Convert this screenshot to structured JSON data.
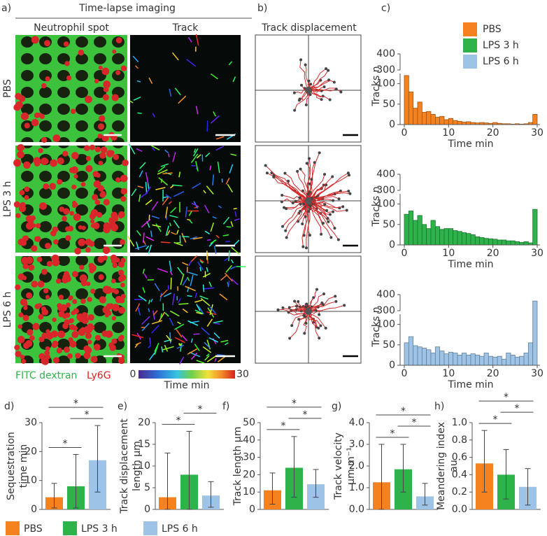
{
  "panels": {
    "a": {
      "letter": "a)",
      "title": "Time-lapse imaging",
      "columns": [
        "Neutrophil spot",
        "Track"
      ],
      "rows": [
        "PBS",
        "LPS 3 h",
        "LPS 6 h"
      ],
      "stain": [
        "FITC dextran",
        "Ly6G"
      ],
      "colorbar": {
        "min": 0,
        "max": 30,
        "label": "Time min"
      }
    },
    "b": {
      "letter": "b)",
      "title": "Track displacement"
    },
    "c": {
      "letter": "c)"
    }
  },
  "legend": [
    {
      "name": "PBS",
      "color": "#f5821f"
    },
    {
      "name": "LPS 3 h",
      "color": "#2db34a"
    },
    {
      "name": "LPS 6 h",
      "color": "#9dc3e6"
    }
  ],
  "chart_data": [
    {
      "type": "histogram",
      "bins": [
        0,
        1,
        2,
        3,
        4,
        5,
        6,
        7,
        8,
        9,
        10,
        11,
        12,
        13,
        14,
        15,
        16,
        17,
        18,
        19,
        20,
        21,
        22,
        23,
        24,
        25,
        26,
        27,
        28,
        29,
        30
      ],
      "values": [
        120,
        80,
        40,
        55,
        30,
        32,
        25,
        18,
        20,
        12,
        15,
        10,
        8,
        6,
        7,
        5,
        4,
        5,
        4,
        3,
        5,
        3,
        2,
        2,
        1,
        2,
        1,
        2,
        5,
        25
      ],
      "color": "#f5821f",
      "xlim": [
        0,
        30
      ],
      "xticks": [
        0,
        10,
        20,
        30
      ],
      "ylim": [
        0,
        400
      ],
      "yticks": [
        0,
        50,
        100,
        300,
        400
      ],
      "ybreak": [
        125,
        300
      ],
      "xlabel": "Time min",
      "ylabel": "Tracks n"
    },
    {
      "type": "histogram",
      "bins": [
        0,
        1,
        2,
        3,
        4,
        5,
        6,
        7,
        8,
        9,
        10,
        11,
        12,
        13,
        14,
        15,
        16,
        17,
        18,
        19,
        20,
        21,
        22,
        23,
        24,
        25,
        26,
        27,
        28,
        29,
        30
      ],
      "values": [
        75,
        83,
        60,
        72,
        50,
        40,
        60,
        45,
        38,
        40,
        40,
        35,
        33,
        30,
        28,
        25,
        20,
        18,
        16,
        15,
        14,
        12,
        12,
        10,
        10,
        8,
        6,
        8,
        5,
        87
      ],
      "color": "#2db34a",
      "xlim": [
        0,
        30
      ],
      "xticks": [
        0,
        10,
        20,
        30
      ],
      "ylim": [
        0,
        400
      ],
      "yticks": [
        0,
        50,
        100,
        300,
        400
      ],
      "ybreak": [
        125,
        300
      ],
      "xlabel": "Time min",
      "ylabel": "Tracks n"
    },
    {
      "type": "histogram",
      "bins": [
        0,
        1,
        2,
        3,
        4,
        5,
        6,
        7,
        8,
        9,
        10,
        11,
        12,
        13,
        14,
        15,
        16,
        17,
        18,
        19,
        20,
        21,
        22,
        23,
        24,
        25,
        26,
        27,
        28,
        29,
        30
      ],
      "values": [
        55,
        70,
        48,
        45,
        42,
        38,
        30,
        45,
        35,
        28,
        32,
        30,
        25,
        30,
        25,
        28,
        25,
        22,
        30,
        22,
        20,
        22,
        15,
        30,
        25,
        20,
        22,
        30,
        55,
        360
      ],
      "color": "#9dc3e6",
      "xlim": [
        0,
        30
      ],
      "xticks": [
        0,
        10,
        20,
        30
      ],
      "ylim": [
        0,
        400
      ],
      "yticks": [
        0,
        50,
        100,
        300,
        400
      ],
      "ybreak": [
        125,
        300
      ],
      "xlabel": "Time min",
      "ylabel": "Tracks n"
    },
    {
      "type": "bar",
      "panel": "d)",
      "ylabel": [
        "Sequestration",
        "time min"
      ],
      "categories": [
        null,
        null,
        null
      ],
      "values": [
        4.2,
        8,
        17
      ],
      "errors_minus": [
        3.7,
        7.5,
        11
      ],
      "errors_plus": [
        4.8,
        11,
        12
      ],
      "colors": [
        "#f5821f",
        "#2db34a",
        "#9dc3e6"
      ],
      "ylim": [
        0,
        30
      ],
      "yticks": [
        0,
        10,
        20,
        30
      ],
      "significance": [
        {
          "pair": [
            0,
            1
          ],
          "label": "*"
        },
        {
          "pair": [
            1,
            2
          ],
          "label": "*"
        },
        {
          "pair": [
            0,
            2
          ],
          "label": "*"
        }
      ]
    },
    {
      "type": "bar",
      "panel": "e)",
      "ylabel": [
        "Track displacement",
        "length µm"
      ],
      "categories": [
        null,
        null,
        null
      ],
      "values": [
        2.8,
        8,
        3.2
      ],
      "errors_minus": [
        2.8,
        8,
        2.7
      ],
      "errors_plus": [
        10.2,
        10,
        3.2
      ],
      "colors": [
        "#f5821f",
        "#2db34a",
        "#9dc3e6"
      ],
      "ylim": [
        0,
        20
      ],
      "yticks": [
        0,
        5,
        10,
        15,
        20
      ],
      "significance": [
        {
          "pair": [
            0,
            1
          ],
          "label": "*"
        },
        {
          "pair": [
            1,
            2
          ],
          "label": "*"
        }
      ]
    },
    {
      "type": "bar",
      "panel": "f)",
      "ylabel": [
        "Track length µm"
      ],
      "categories": [
        null,
        null,
        null
      ],
      "values": [
        11,
        24,
        14.5
      ],
      "errors_minus": [
        8,
        17,
        7.5
      ],
      "errors_plus": [
        10,
        18,
        8.5
      ],
      "colors": [
        "#f5821f",
        "#2db34a",
        "#9dc3e6"
      ],
      "ylim": [
        0,
        50
      ],
      "yticks": [
        0,
        10,
        20,
        30,
        40,
        50
      ],
      "significance": [
        {
          "pair": [
            0,
            1
          ],
          "label": "*"
        },
        {
          "pair": [
            1,
            2
          ],
          "label": "*"
        },
        {
          "pair": [
            0,
            2
          ],
          "label": "*"
        }
      ]
    },
    {
      "type": "bar",
      "panel": "g)",
      "ylabel": [
        "Track velocity",
        "µm·m⁻¹"
      ],
      "categories": [
        null,
        null,
        null
      ],
      "values": [
        1.25,
        1.85,
        0.6
      ],
      "errors_minus": [
        1.25,
        1.05,
        0.4
      ],
      "errors_plus": [
        1.75,
        1.15,
        0.6
      ],
      "colors": [
        "#f5821f",
        "#2db34a",
        "#9dc3e6"
      ],
      "ylim": [
        0,
        4
      ],
      "yticks": [
        {
          "value": 0,
          "label": "0.0"
        },
        {
          "value": 1,
          "label": "1.0"
        },
        {
          "value": 2,
          "label": "2.0"
        },
        {
          "value": 3,
          "label": "3.0"
        },
        {
          "value": 4,
          "label": "4.0"
        }
      ],
      "significance": [
        {
          "pair": [
            0,
            1
          ],
          "label": "*"
        },
        {
          "pair": [
            1,
            2
          ],
          "label": "*"
        },
        {
          "pair": [
            0,
            2
          ],
          "label": "*"
        }
      ]
    },
    {
      "type": "bar",
      "panel": "h)",
      "ylabel": [
        "Meandering index",
        "au"
      ],
      "categories": [
        null,
        null,
        null
      ],
      "values": [
        0.53,
        0.4,
        0.26
      ],
      "errors_minus": [
        0.33,
        0.28,
        0.21
      ],
      "errors_plus": [
        0.38,
        0.29,
        0.21
      ],
      "colors": [
        "#f5821f",
        "#2db34a",
        "#9dc3e6"
      ],
      "ylim": [
        0,
        1
      ],
      "yticks": [
        {
          "value": 0,
          "label": "0.0"
        },
        {
          "value": 0.2,
          "label": "0.2"
        },
        {
          "value": 0.4,
          "label": "0.4"
        },
        {
          "value": 0.6,
          "label": "0.6"
        },
        {
          "value": 0.8,
          "label": "0.8"
        },
        {
          "value": 1,
          "label": "1.0"
        }
      ],
      "significance": [
        {
          "pair": [
            0,
            1
          ],
          "label": "*"
        },
        {
          "pair": [
            1,
            2
          ],
          "label": "*"
        },
        {
          "pair": [
            0,
            2
          ],
          "label": "*"
        }
      ]
    }
  ]
}
